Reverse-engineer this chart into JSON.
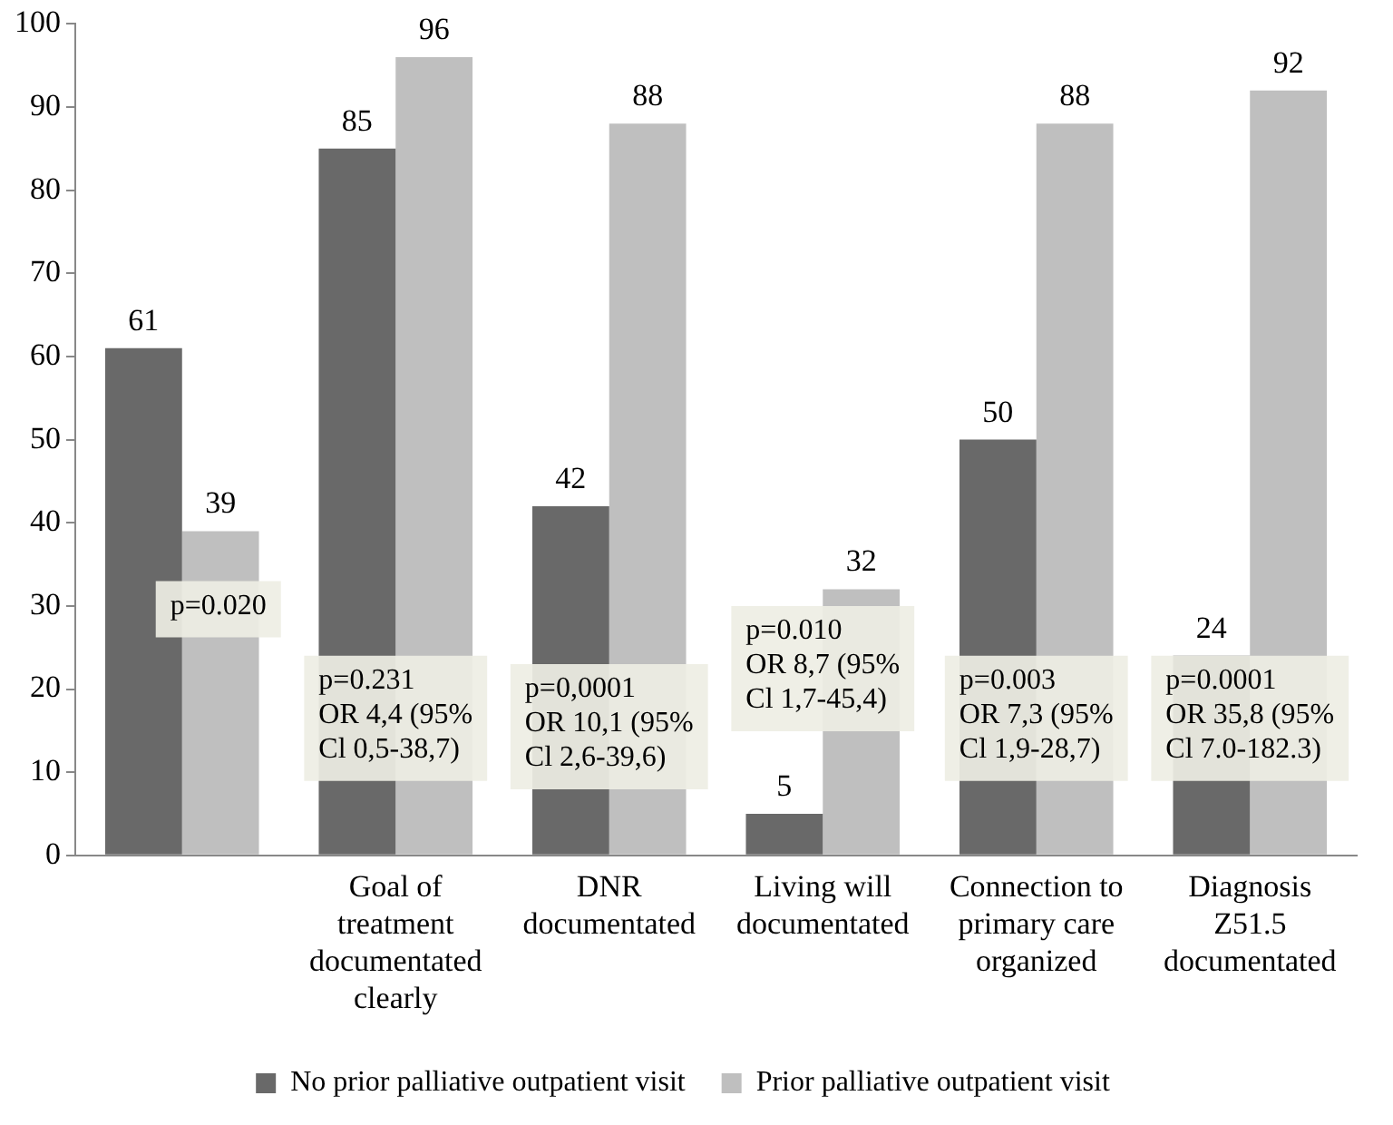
{
  "chart_data": {
    "type": "bar",
    "categories": [
      null,
      "Goal of treatment documentated clearly",
      "DNR documentated",
      "Living will documentated",
      "Connection to primary care organized",
      "Diagnosis Z51.5 documentated"
    ],
    "series": [
      {
        "name": "No prior palliative outpatient visit",
        "color": "#696969",
        "values": [
          61,
          85,
          42,
          5,
          50,
          24
        ]
      },
      {
        "name": "Prior palliative outpatient visit",
        "color": "#bfbfbf",
        "values": [
          39,
          96,
          88,
          32,
          88,
          92
        ]
      }
    ],
    "ylim": [
      0,
      100
    ],
    "yticks": [
      0,
      10,
      20,
      30,
      40,
      50,
      60,
      70,
      80,
      90,
      100
    ],
    "grid": false,
    "legend": "bottom",
    "data_labels": true,
    "annotations": [
      "p=0.020",
      "p=0.231\nOR 4,4 (95%\nCl 0,5-38,7)",
      "p=0,0001\nOR 10,1 (95%\nCl 2,6-39,6)",
      "p=0.010\nOR 8,7 (95%\nCl 1,7-45,4)",
      "p=0.003\nOR 7,3 (95%\nCl 1,9-28,7)",
      "p=0.0001\nOR 35,8 (95%\nCl 7.0-182.3)"
    ]
  }
}
